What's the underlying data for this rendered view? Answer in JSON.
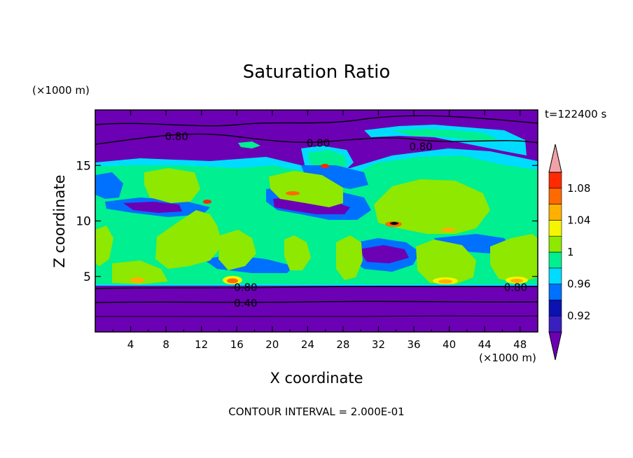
{
  "chart_data": {
    "type": "heatmap",
    "title": "Saturation Ratio",
    "xlabel": "X coordinate",
    "ylabel": "Z coordinate",
    "x_unit": "(×1000 m)",
    "y_unit": "(×1000 m)",
    "time_label": "t=122400 s",
    "footer": "CONTOUR INTERVAL = 2.000E-01",
    "xlim": [
      0,
      50
    ],
    "ylim": [
      0,
      20
    ],
    "x_ticks": [
      "4",
      "8",
      "12",
      "16",
      "20",
      "24",
      "28",
      "32",
      "36",
      "40",
      "44",
      "48"
    ],
    "y_ticks": [
      "5",
      "10",
      "15"
    ],
    "contour_labels": [
      "0.80",
      "0.80",
      "0.80",
      "0.80",
      "0.80",
      "0.40"
    ],
    "colorbar": {
      "labels": [
        "1.08",
        "1.04",
        "1",
        "0.96",
        "0.92"
      ],
      "levels": [
        0.92,
        0.94,
        0.96,
        0.98,
        1.0,
        1.02,
        1.04,
        1.06,
        1.08
      ],
      "colors": [
        "#6c00b4",
        "#3a1fc0",
        "#0a12b0",
        "#0070ff",
        "#00dcff",
        "#00ef90",
        "#8ee800",
        "#f5f500",
        "#ffb000",
        "#ff6a00",
        "#ff2a00",
        "#f2a2a6"
      ]
    },
    "colors": {
      "dry": "#6c00b4",
      "near_saturation": "#00ef90",
      "slightly_super": "#8ee800",
      "high": "#ff6a00"
    }
  }
}
